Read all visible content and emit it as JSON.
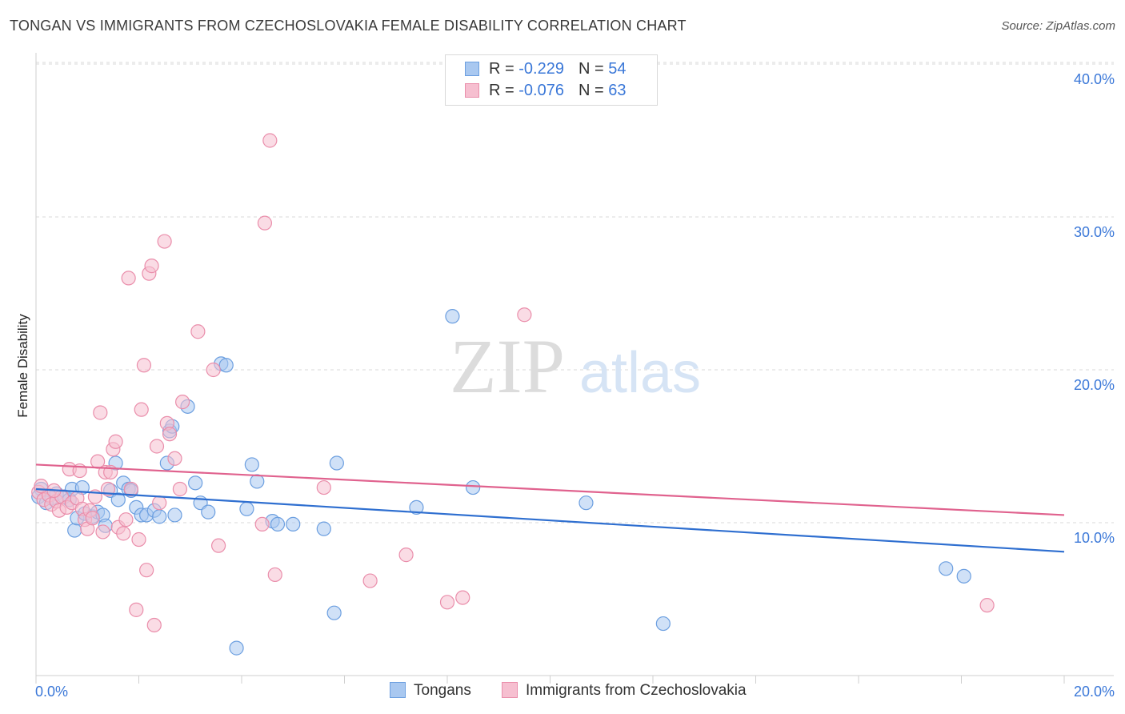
{
  "header": {
    "title": "TONGAN VS IMMIGRANTS FROM CZECHOSLOVAKIA FEMALE DISABILITY CORRELATION CHART",
    "source": "Source: ZipAtlas.com"
  },
  "watermark": {
    "zip": "ZIP",
    "atlas": "atlas"
  },
  "legend": {
    "rows": [
      {
        "r_label": "R = ",
        "r_value": "-0.229",
        "n_label": "N = ",
        "n_value": "54"
      },
      {
        "r_label": "R = ",
        "r_value": "-0.076",
        "n_label": "N = ",
        "n_value": "63"
      }
    ]
  },
  "colors": {
    "series1_fill": "#a9c8f0",
    "series1_stroke": "#6c9fe0",
    "series1_line": "#2f6fd0",
    "series2_fill": "#f6bfd0",
    "series2_stroke": "#ea8eab",
    "series2_line": "#e0628e",
    "tick": "#3b78d8",
    "grid": "#d9d9d9"
  },
  "chart_data": {
    "type": "scatter",
    "title": "TONGAN VS IMMIGRANTS FROM CZECHOSLOVAKIA FEMALE DISABILITY CORRELATION CHART",
    "xlabel": "",
    "ylabel": "Female Disability",
    "xlim": [
      0,
      20
    ],
    "ylim": [
      0,
      40
    ],
    "x_tick_labels": [
      "0.0%",
      "20.0%"
    ],
    "y_ticks": [
      10,
      20,
      30,
      40
    ],
    "y_tick_labels": [
      "10.0%",
      "20.0%",
      "30.0%",
      "40.0%"
    ],
    "grid": true,
    "series": [
      {
        "name": "Tongans",
        "trend": {
          "x": [
            0,
            20
          ],
          "y": [
            12.2,
            8.1
          ]
        },
        "points": [
          [
            0.1,
            12.2
          ],
          [
            0.3,
            11.6
          ],
          [
            0.4,
            11.9
          ],
          [
            0.55,
            11.7
          ],
          [
            0.65,
            11.5
          ],
          [
            0.7,
            12.2
          ],
          [
            0.75,
            9.5
          ],
          [
            0.8,
            10.3
          ],
          [
            0.9,
            12.3
          ],
          [
            0.95,
            10.6
          ],
          [
            1.1,
            10.4
          ],
          [
            1.2,
            10.7
          ],
          [
            1.3,
            10.5
          ],
          [
            1.35,
            9.8
          ],
          [
            1.45,
            12.1
          ],
          [
            1.55,
            13.9
          ],
          [
            1.6,
            11.5
          ],
          [
            1.7,
            12.6
          ],
          [
            1.8,
            12.2
          ],
          [
            1.85,
            12.1
          ],
          [
            1.95,
            11.0
          ],
          [
            2.05,
            10.5
          ],
          [
            2.15,
            10.5
          ],
          [
            2.3,
            10.8
          ],
          [
            2.4,
            10.4
          ],
          [
            2.55,
            13.9
          ],
          [
            2.6,
            16.0
          ],
          [
            2.65,
            16.3
          ],
          [
            2.7,
            10.5
          ],
          [
            2.95,
            17.6
          ],
          [
            3.1,
            12.6
          ],
          [
            3.2,
            11.3
          ],
          [
            3.35,
            10.7
          ],
          [
            3.6,
            20.4
          ],
          [
            3.7,
            20.3
          ],
          [
            3.9,
            1.8
          ],
          [
            4.1,
            10.9
          ],
          [
            4.2,
            13.8
          ],
          [
            4.3,
            12.7
          ],
          [
            4.6,
            10.1
          ],
          [
            4.7,
            9.9
          ],
          [
            5.0,
            9.9
          ],
          [
            5.6,
            9.6
          ],
          [
            5.8,
            4.1
          ],
          [
            5.85,
            13.9
          ],
          [
            7.4,
            11.0
          ],
          [
            8.1,
            23.5
          ],
          [
            8.5,
            12.3
          ],
          [
            10.7,
            11.3
          ],
          [
            12.2,
            3.4
          ],
          [
            17.7,
            7.0
          ],
          [
            18.05,
            6.5
          ],
          [
            0.05,
            11.7
          ],
          [
            0.2,
            11.3
          ]
        ]
      },
      {
        "name": "Immigrants from Czechoslovakia",
        "trend": {
          "x": [
            0,
            20
          ],
          "y": [
            13.8,
            10.5
          ]
        },
        "points": [
          [
            0.05,
            12.0
          ],
          [
            0.15,
            11.5
          ],
          [
            0.25,
            11.8
          ],
          [
            0.3,
            11.2
          ],
          [
            0.4,
            11.4
          ],
          [
            0.45,
            10.8
          ],
          [
            0.5,
            11.7
          ],
          [
            0.6,
            11.0
          ],
          [
            0.65,
            13.5
          ],
          [
            0.7,
            11.3
          ],
          [
            0.8,
            11.6
          ],
          [
            0.85,
            13.4
          ],
          [
            0.9,
            10.9
          ],
          [
            0.95,
            10.2
          ],
          [
            1.0,
            9.6
          ],
          [
            1.05,
            10.8
          ],
          [
            1.1,
            10.3
          ],
          [
            1.15,
            11.7
          ],
          [
            1.2,
            14.0
          ],
          [
            1.25,
            17.2
          ],
          [
            1.3,
            9.4
          ],
          [
            1.35,
            13.3
          ],
          [
            1.4,
            12.2
          ],
          [
            1.45,
            13.3
          ],
          [
            1.5,
            14.8
          ],
          [
            1.55,
            15.3
          ],
          [
            1.6,
            9.7
          ],
          [
            1.7,
            9.3
          ],
          [
            1.75,
            10.2
          ],
          [
            1.8,
            26.0
          ],
          [
            1.85,
            12.2
          ],
          [
            1.95,
            4.3
          ],
          [
            2.0,
            8.9
          ],
          [
            2.05,
            17.4
          ],
          [
            2.1,
            20.3
          ],
          [
            2.15,
            6.9
          ],
          [
            2.2,
            26.3
          ],
          [
            2.25,
            26.8
          ],
          [
            2.3,
            3.3
          ],
          [
            2.35,
            15.0
          ],
          [
            2.4,
            11.3
          ],
          [
            2.5,
            28.4
          ],
          [
            2.55,
            16.5
          ],
          [
            2.6,
            15.8
          ],
          [
            2.7,
            14.2
          ],
          [
            2.8,
            12.2
          ],
          [
            2.85,
            17.9
          ],
          [
            3.15,
            22.5
          ],
          [
            3.45,
            20.0
          ],
          [
            3.55,
            8.5
          ],
          [
            4.4,
            9.9
          ],
          [
            4.45,
            29.6
          ],
          [
            4.55,
            35.0
          ],
          [
            4.65,
            6.6
          ],
          [
            5.6,
            12.3
          ],
          [
            6.5,
            6.2
          ],
          [
            7.2,
            7.9
          ],
          [
            8.0,
            4.8
          ],
          [
            8.3,
            5.1
          ],
          [
            9.5,
            23.6
          ],
          [
            18.5,
            4.6
          ],
          [
            0.1,
            12.4
          ],
          [
            0.35,
            12.1
          ]
        ]
      }
    ]
  },
  "bottom_legend": {
    "items": [
      {
        "label": "Tongans"
      },
      {
        "label": "Immigrants from Czechoslovakia"
      }
    ]
  }
}
